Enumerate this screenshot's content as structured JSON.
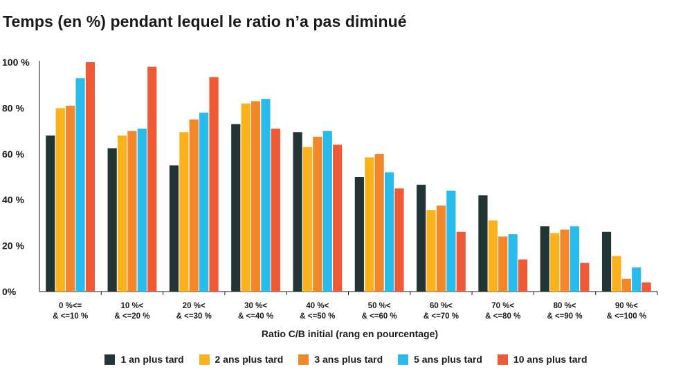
{
  "title": "Temps (en %) pendant lequel le ratio n’a pas diminué",
  "chart_data": {
    "type": "bar",
    "title": "Temps (en %) pendant lequel le ratio n’a pas diminué",
    "xlabel": "Ratio C/B initial (rang en pourcentage)",
    "ylabel": "",
    "ylim": [
      0,
      100
    ],
    "yticks": [
      "0%",
      "20 %",
      "40 %",
      "60 %",
      "80 %",
      "100 %"
    ],
    "categories": [
      [
        "0 %<=",
        "& <=10 %"
      ],
      [
        "10 %<",
        "& <=20 %"
      ],
      [
        "20 %<",
        "& <=30 %"
      ],
      [
        "30 %<",
        "& <=40 %"
      ],
      [
        "40 %<",
        "& <=50 %"
      ],
      [
        "50 %<",
        "& <=60 %"
      ],
      [
        "60 %<",
        "& <=70 %"
      ],
      [
        "70 %<",
        "& <=80 %"
      ],
      [
        "80 %<",
        "& <=90 %"
      ],
      [
        "90 %<",
        "& <=100 %"
      ]
    ],
    "series": [
      {
        "name": "1 an plus tard",
        "color": "#233434",
        "values": [
          68,
          62.5,
          55,
          73,
          69.5,
          50,
          46.5,
          42,
          28.5,
          26
        ]
      },
      {
        "name": "2 ans plus tard",
        "color": "#FBB21D",
        "values": [
          80,
          68,
          69.5,
          82,
          63,
          58.5,
          35.5,
          31,
          25.5,
          15.5
        ]
      },
      {
        "name": "3 ans plus tard",
        "color": "#F3872A",
        "values": [
          81,
          70,
          75,
          83,
          67.5,
          60,
          37.5,
          24,
          27,
          5.5
        ]
      },
      {
        "name": "5 ans plus tard",
        "color": "#28BBEC",
        "values": [
          93,
          71,
          78,
          84,
          70,
          52,
          44,
          25,
          28.5,
          10.5
        ]
      },
      {
        "name": "10 ans plus tard",
        "color": "#EE5A36",
        "values": [
          100,
          98,
          93.5,
          71,
          64,
          45,
          26,
          14,
          12.5,
          4
        ]
      }
    ],
    "grid": false,
    "legend": "bottom"
  }
}
